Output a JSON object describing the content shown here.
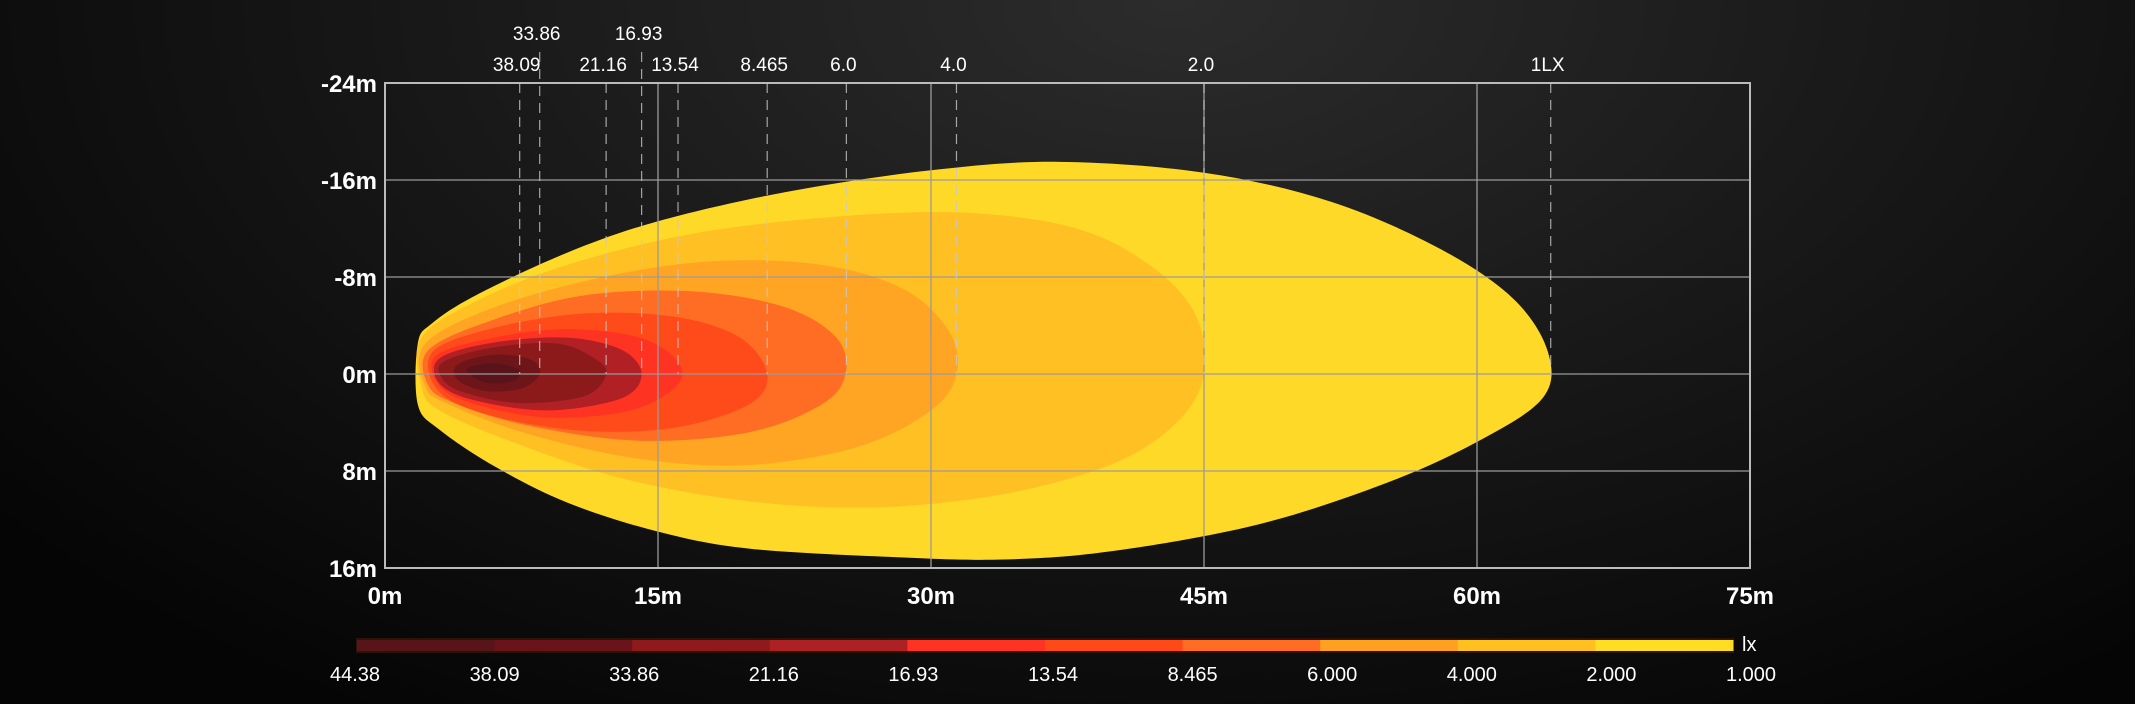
{
  "chart_data": {
    "type": "contour",
    "title": "",
    "x_axis": {
      "range": [
        0,
        75
      ],
      "ticks": [
        0,
        15,
        30,
        45,
        60,
        75
      ],
      "tick_labels": [
        "0m",
        "15m",
        "30m",
        "45m",
        "60m",
        "75m"
      ]
    },
    "y_axis": {
      "range": [
        -24,
        16
      ],
      "ticks": [
        -24,
        -16,
        -8,
        0,
        8,
        16
      ],
      "tick_labels": [
        "-24m",
        "-16m",
        "-8m",
        "0m",
        "8m",
        "16m"
      ]
    },
    "grid": true,
    "isolux_markers": [
      {
        "label": "38.09",
        "x": 7.4,
        "row": 2
      },
      {
        "label": "33.86",
        "x": 8.5,
        "row": 1
      },
      {
        "label": "21.16",
        "x": 12.15,
        "row": 2
      },
      {
        "label": "16.93",
        "x": 14.1,
        "row": 1
      },
      {
        "label": "13.54",
        "x": 16.1,
        "row": 2
      },
      {
        "label": "8.465",
        "x": 21.0,
        "row": 2
      },
      {
        "label": "6.0",
        "x": 25.35,
        "row": 2
      },
      {
        "label": "4.0",
        "x": 31.4,
        "row": 2
      },
      {
        "label": "2.0",
        "x": 45.0,
        "row": 2
      },
      {
        "label": "1LX",
        "x": 64.05,
        "row": 2
      }
    ],
    "contours": [
      {
        "lux": 1.0,
        "color": "#ffd928",
        "points": [
          [
            1.8,
            -2.5
          ],
          [
            2.6,
            -4.2
          ],
          [
            5,
            -6.5
          ],
          [
            10,
            -10
          ],
          [
            15,
            -12.6
          ],
          [
            22,
            -15
          ],
          [
            30,
            -16.8
          ],
          [
            37,
            -17.5
          ],
          [
            45,
            -16.6
          ],
          [
            52,
            -14.2
          ],
          [
            58,
            -10.3
          ],
          [
            62,
            -6.2
          ],
          [
            63.9,
            -1.8
          ],
          [
            63.6,
            2
          ],
          [
            60,
            5.6
          ],
          [
            55,
            9
          ],
          [
            48,
            12.4
          ],
          [
            40,
            14.6
          ],
          [
            34,
            15.3
          ],
          [
            28,
            15.1
          ],
          [
            20,
            14.4
          ],
          [
            15,
            13
          ],
          [
            10,
            10.6
          ],
          [
            6,
            7.6
          ],
          [
            3,
            4.6
          ],
          [
            1.8,
            2.5
          ]
        ]
      },
      {
        "lux": 2.0,
        "color": "#ffc024",
        "points": [
          [
            2,
            -3
          ],
          [
            5,
            -6
          ],
          [
            10,
            -9
          ],
          [
            17,
            -11.6
          ],
          [
            25,
            -13
          ],
          [
            32,
            -13.3
          ],
          [
            38,
            -12
          ],
          [
            42,
            -9
          ],
          [
            44.5,
            -5
          ],
          [
            45,
            0
          ],
          [
            43.5,
            4
          ],
          [
            40,
            7.4
          ],
          [
            34,
            9.9
          ],
          [
            27,
            11
          ],
          [
            20,
            10.5
          ],
          [
            13,
            8.6
          ],
          [
            7,
            5.6
          ],
          [
            3,
            3
          ],
          [
            2,
            1
          ]
        ]
      },
      {
        "lux": 4.0,
        "color": "#ffa423",
        "points": [
          [
            2.2,
            -2.5
          ],
          [
            6,
            -5.5
          ],
          [
            12,
            -8
          ],
          [
            18,
            -9.3
          ],
          [
            24,
            -9
          ],
          [
            28.5,
            -7
          ],
          [
            31,
            -3.5
          ],
          [
            31.4,
            0
          ],
          [
            30,
            3
          ],
          [
            26,
            6
          ],
          [
            20,
            7.5
          ],
          [
            14,
            7
          ],
          [
            8,
            5
          ],
          [
            3.5,
            2.5
          ],
          [
            2.2,
            1
          ]
        ]
      },
      {
        "lux": 6.0,
        "color": "#ff6c24",
        "points": [
          [
            2.4,
            -2
          ],
          [
            6,
            -4.5
          ],
          [
            11,
            -6.5
          ],
          [
            17,
            -6.8
          ],
          [
            22,
            -5.5
          ],
          [
            24.8,
            -3
          ],
          [
            25.3,
            0
          ],
          [
            24,
            2.5
          ],
          [
            20,
            4.8
          ],
          [
            14,
            5.5
          ],
          [
            8,
            4.3
          ],
          [
            4,
            2.5
          ],
          [
            2.4,
            1
          ]
        ]
      },
      {
        "lux": 8.465,
        "color": "#ff4a1a",
        "points": [
          [
            2.6,
            -1.8
          ],
          [
            6,
            -3.8
          ],
          [
            11,
            -5
          ],
          [
            16,
            -4.7
          ],
          [
            19.5,
            -3
          ],
          [
            21,
            0
          ],
          [
            20,
            2.5
          ],
          [
            16,
            4.4
          ],
          [
            11,
            4.7
          ],
          [
            6,
            3.5
          ],
          [
            3,
            1.5
          ]
        ]
      },
      {
        "lux": 13.54,
        "color": "#ff3322",
        "points": [
          [
            2.8,
            -1.5
          ],
          [
            6,
            -3
          ],
          [
            10,
            -3.7
          ],
          [
            14,
            -3
          ],
          [
            16.1,
            -1
          ],
          [
            16,
            1
          ],
          [
            13.5,
            3
          ],
          [
            9,
            3.6
          ],
          [
            5,
            2.5
          ],
          [
            3,
            1
          ]
        ]
      },
      {
        "lux": 16.93,
        "color": "#b02024",
        "points": [
          [
            3,
            -1.3
          ],
          [
            6,
            -2.6
          ],
          [
            10,
            -3
          ],
          [
            13,
            -2
          ],
          [
            14.1,
            0
          ],
          [
            13,
            2
          ],
          [
            9,
            3
          ],
          [
            5,
            2.2
          ],
          [
            3,
            0.8
          ]
        ]
      },
      {
        "lux": 21.16,
        "color": "#8c1a1b",
        "points": [
          [
            3.2,
            -1
          ],
          [
            6,
            -2.2
          ],
          [
            9.5,
            -2.5
          ],
          [
            11.5,
            -1.3
          ],
          [
            12.15,
            0
          ],
          [
            11,
            1.8
          ],
          [
            7.5,
            2.4
          ],
          [
            4.5,
            1.6
          ],
          [
            3.2,
            0.5
          ]
        ]
      },
      {
        "lux": 33.86,
        "color": "#6e151a",
        "points": [
          [
            4,
            -0.8
          ],
          [
            6,
            -1.6
          ],
          [
            8,
            -1.2
          ],
          [
            8.5,
            0
          ],
          [
            7.5,
            1.2
          ],
          [
            5.5,
            1.4
          ],
          [
            4,
            0.5
          ]
        ]
      },
      {
        "lux": 38.09,
        "color": "#58141a",
        "points": [
          [
            4.5,
            -0.4
          ],
          [
            6,
            -0.9
          ],
          [
            7.4,
            -0.3
          ],
          [
            7,
            0.6
          ],
          [
            5.5,
            0.7
          ]
        ]
      }
    ],
    "legend": {
      "unit": "lx",
      "placement": "bottom",
      "labels": [
        "44.38",
        "38.09",
        "33.86",
        "21.16",
        "16.93",
        "13.54",
        "8.465",
        "6.000",
        "4.000",
        "2.000",
        "1.000"
      ],
      "colors": [
        "#57151a",
        "#6b131a",
        "#8f1a1b",
        "#ad2024",
        "#ff3322",
        "#ff4a18",
        "#ff6c24",
        "#ffa020",
        "#ffc020",
        "#ffdd25"
      ]
    },
    "grid_color": "#9a9a9a"
  }
}
